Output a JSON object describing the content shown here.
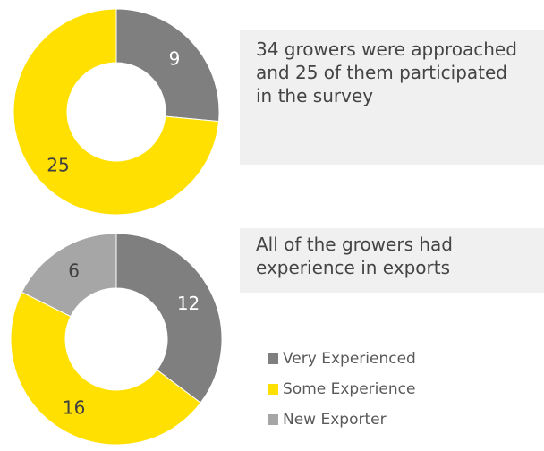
{
  "chart_data": [
    {
      "type": "pie",
      "donut": true,
      "values": [
        9,
        25
      ],
      "colors": [
        "#7f7f7f",
        "#ffe000"
      ],
      "label_colors": [
        "#ffffff",
        "#404040"
      ]
    },
    {
      "type": "pie",
      "donut": true,
      "categories": [
        "Very Experienced",
        "Some Experience",
        "New Exporter"
      ],
      "values": [
        12,
        16,
        6
      ],
      "colors": [
        "#7f7f7f",
        "#ffe000",
        "#a6a6a6"
      ],
      "label_colors": [
        "#ffffff",
        "#404040",
        "#404040"
      ]
    }
  ],
  "callouts": {
    "top": "34 growers were approached and 25 of them participated in the survey",
    "bottom": "All of the growers had experience in exports"
  },
  "legend": [
    {
      "label": "Very Experienced",
      "color": "#7f7f7f"
    },
    {
      "label": "Some Experience",
      "color": "#ffe000"
    },
    {
      "label": "New Exporter",
      "color": "#a6a6a6"
    }
  ]
}
